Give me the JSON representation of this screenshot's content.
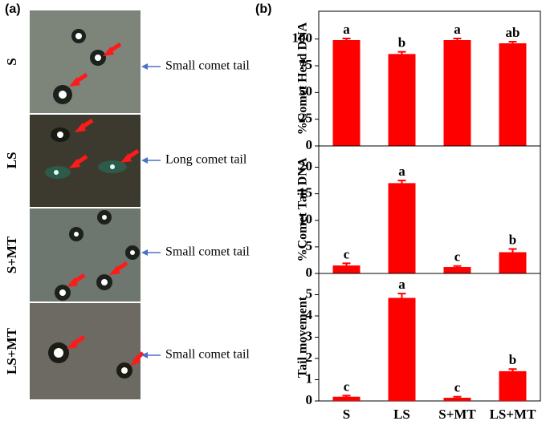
{
  "panel_labels": [
    "(a)",
    "(b)"
  ],
  "panel_a": {
    "rows": [
      {
        "label": "S",
        "note": "Small comet tail"
      },
      {
        "label": "LS",
        "note": "Long comet tail"
      },
      {
        "label": "S+MT",
        "note": "Small comet tail"
      },
      {
        "label": "LS+MT",
        "note": "Small comet tail"
      }
    ]
  },
  "chart_data": [
    {
      "type": "bar",
      "y_label": "%Comet Head DNA",
      "color": "#ff0000",
      "categories": [
        null,
        null,
        null,
        null
      ],
      "values": [
        99,
        86,
        99,
        96
      ],
      "errors": [
        1.5,
        2,
        1.5,
        1.5
      ],
      "annotations": [
        "a",
        "b",
        "a",
        "ab"
      ],
      "ylim": [
        0,
        126
      ],
      "yticks": [
        0,
        25,
        50,
        75,
        100
      ]
    },
    {
      "type": "bar",
      "y_label": "%Comet Tail DNA",
      "color": "#ff0000",
      "categories": [
        null,
        null,
        null,
        null
      ],
      "values": [
        1.5,
        17,
        1.2,
        4
      ],
      "errors": [
        0.4,
        0.5,
        0.2,
        0.6
      ],
      "annotations": [
        "c",
        "a",
        "c",
        "b"
      ],
      "ylim": [
        0,
        24
      ],
      "yticks": [
        0,
        5,
        10,
        15,
        20
      ]
    },
    {
      "type": "bar",
      "y_label": "Tail movement",
      "color": "#ff0000",
      "categories": [
        "S",
        "LS",
        "S+MT",
        "LS+MT"
      ],
      "values": [
        0.2,
        4.85,
        0.15,
        1.4
      ],
      "errors": [
        0.05,
        0.2,
        0.05,
        0.1
      ],
      "annotations": [
        "c",
        "a",
        "c",
        "b"
      ],
      "ylim": [
        0,
        6
      ],
      "yticks": [
        0,
        1,
        2,
        3,
        4,
        5
      ]
    }
  ]
}
